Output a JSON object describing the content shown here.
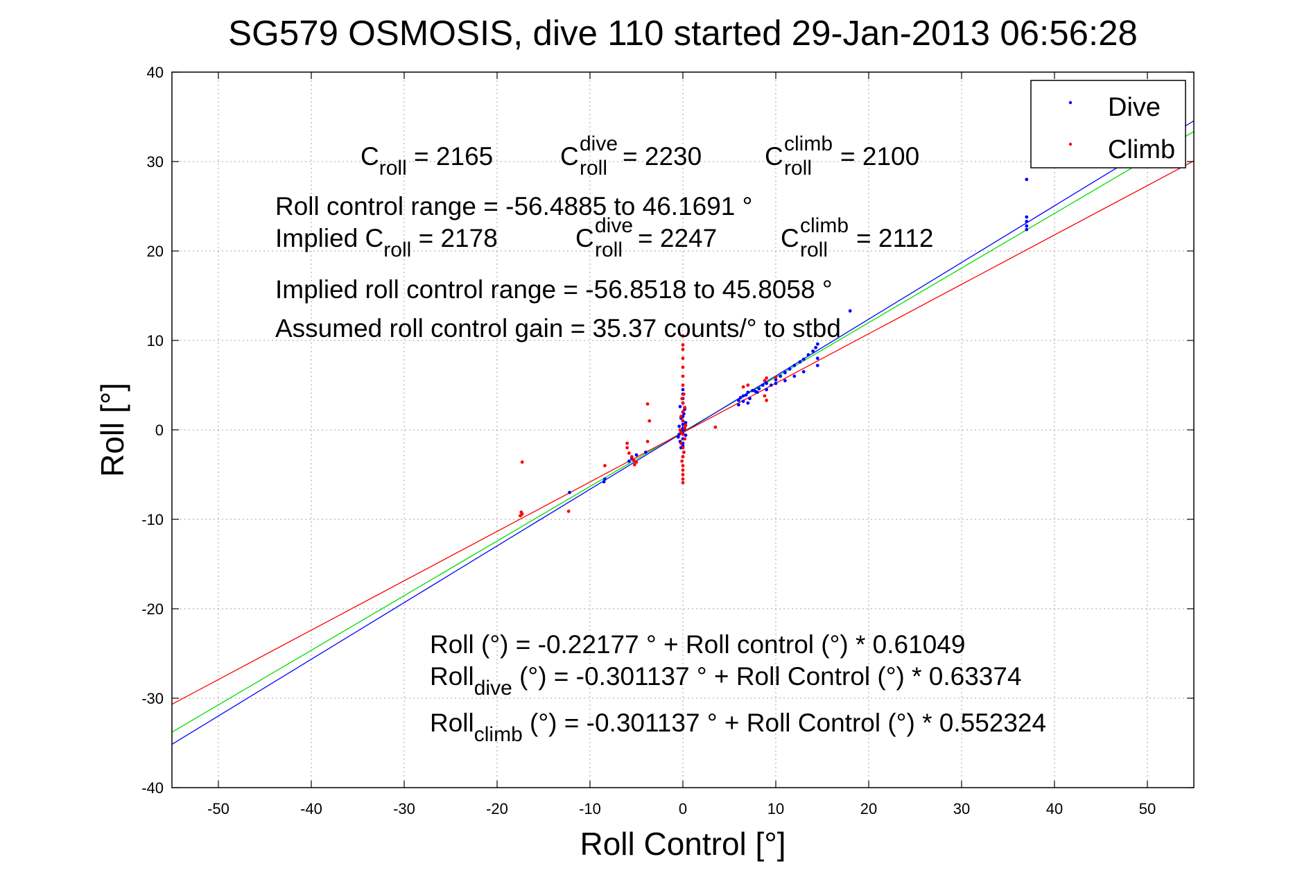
{
  "chart_data": {
    "type": "scatter",
    "title": "SG579 OSMOSIS, dive 110 started 29-Jan-2013 06:56:28",
    "xlabel": "Roll Control [°]",
    "ylabel": "Roll [°]",
    "xlim": [
      -55,
      55
    ],
    "ylim": [
      -40,
      40
    ],
    "xticks": [
      -50,
      -40,
      -30,
      -20,
      -10,
      0,
      10,
      20,
      30,
      40,
      50
    ],
    "yticks": [
      -40,
      -30,
      -20,
      -10,
      0,
      10,
      20,
      30,
      40
    ],
    "grid": true,
    "legend_position": "top-right",
    "colors": {
      "dive": "#0000ff",
      "climb": "#ff0000",
      "fit": "#00dd00",
      "axes": "#000000",
      "grid": "#a0a0a0"
    },
    "series": [
      {
        "name": "Dive",
        "color": "#0000ff",
        "points": [
          [
            0,
            4.5
          ],
          [
            0,
            4.0
          ],
          [
            0,
            3.5
          ],
          [
            0,
            3.0
          ],
          [
            -0.3,
            2.6
          ],
          [
            0.2,
            2.3
          ],
          [
            0,
            2.0
          ],
          [
            0.1,
            1.8
          ],
          [
            0,
            1.5
          ],
          [
            -0.2,
            1.3
          ],
          [
            0,
            1.0
          ],
          [
            0.3,
            0.8
          ],
          [
            0,
            0.6
          ],
          [
            -0.4,
            0.4
          ],
          [
            0,
            0.2
          ],
          [
            0.2,
            0.1
          ],
          [
            0,
            0
          ],
          [
            -0.2,
            -0.2
          ],
          [
            0,
            -0.4
          ],
          [
            0.3,
            -0.6
          ],
          [
            -0.5,
            -0.8
          ],
          [
            0,
            -1.0
          ],
          [
            -0.3,
            -1.3
          ],
          [
            0,
            -1.5
          ],
          [
            0,
            -1.8
          ],
          [
            -0.2,
            -2.0
          ],
          [
            0.1,
            -2.5
          ],
          [
            0,
            -3.0
          ],
          [
            -0.4,
            -0.5
          ],
          [
            6.0,
            3.3
          ],
          [
            6.2,
            3.6
          ],
          [
            6.5,
            3.8
          ],
          [
            6.8,
            3.9
          ],
          [
            7.0,
            4.2
          ],
          [
            7.2,
            3.5
          ],
          [
            7.5,
            4.4
          ],
          [
            7.0,
            3.0
          ],
          [
            6.5,
            3.2
          ],
          [
            6.0,
            2.8
          ],
          [
            7.8,
            4.3
          ],
          [
            8.2,
            4.6
          ],
          [
            8.6,
            5.0
          ],
          [
            9.0,
            5.2
          ],
          [
            9.5,
            5.0
          ],
          [
            10.0,
            5.6
          ],
          [
            10.5,
            6.0
          ],
          [
            11.0,
            6.4
          ],
          [
            11.5,
            6.8
          ],
          [
            12.0,
            7.2
          ],
          [
            12.6,
            7.6
          ],
          [
            13.0,
            7.9
          ],
          [
            13.5,
            8.4
          ],
          [
            14.0,
            8.8
          ],
          [
            14.3,
            9.2
          ],
          [
            14.5,
            9.6
          ],
          [
            14.5,
            8.0
          ],
          [
            14.5,
            7.2
          ],
          [
            13.0,
            6.5
          ],
          [
            12.0,
            6.0
          ],
          [
            11.0,
            5.5
          ],
          [
            10.0,
            5.2
          ],
          [
            9.0,
            4.5
          ],
          [
            8.0,
            4.2
          ],
          [
            18.0,
            13.3
          ],
          [
            37.0,
            28.0
          ],
          [
            37.0,
            23.8
          ],
          [
            37.0,
            23.3
          ],
          [
            37.0,
            22.8
          ],
          [
            37.0,
            22.4
          ],
          [
            -12.2,
            -7.0
          ],
          [
            -8.5,
            -5.8
          ],
          [
            -8.4,
            -5.5
          ],
          [
            -5.8,
            -3.5
          ],
          [
            -5.5,
            -3.2
          ],
          [
            -5.0,
            -2.8
          ],
          [
            -4.0,
            -2.5
          ]
        ]
      },
      {
        "name": "Climb",
        "color": "#ff0000",
        "points": [
          [
            0,
            10.5
          ],
          [
            0,
            9.5
          ],
          [
            0,
            9.0
          ],
          [
            0,
            8.0
          ],
          [
            0,
            7.0
          ],
          [
            0,
            6.0
          ],
          [
            0,
            5.0
          ],
          [
            0.1,
            4.0
          ],
          [
            -0.1,
            3.5
          ],
          [
            0,
            3.0
          ],
          [
            0.2,
            2.5
          ],
          [
            0,
            2.0
          ],
          [
            -0.2,
            1.5
          ],
          [
            0,
            1.0
          ],
          [
            0.3,
            0.5
          ],
          [
            -0.3,
            0
          ],
          [
            0,
            -0.5
          ],
          [
            0.2,
            -1.0
          ],
          [
            -0.2,
            -1.5
          ],
          [
            0,
            -2.0
          ],
          [
            0.1,
            -2.5
          ],
          [
            0,
            -3.0
          ],
          [
            -0.1,
            -3.5
          ],
          [
            0,
            -4.0
          ],
          [
            0,
            -4.5
          ],
          [
            0,
            -5.0
          ],
          [
            0,
            -5.5
          ],
          [
            0,
            -5.9
          ],
          [
            0.2,
            0.2
          ],
          [
            -0.2,
            -0.3
          ],
          [
            3.5,
            0.3
          ],
          [
            -3.8,
            2.9
          ],
          [
            -3.6,
            1.0
          ],
          [
            -3.8,
            -1.3
          ],
          [
            -6.0,
            -1.5
          ],
          [
            -6.0,
            -2.0
          ],
          [
            -5.8,
            -2.6
          ],
          [
            -5.5,
            -3.0
          ],
          [
            -5.3,
            -3.4
          ],
          [
            -5.0,
            -3.6
          ],
          [
            -5.2,
            -3.9
          ],
          [
            -8.4,
            -4.0
          ],
          [
            -17.3,
            -3.6
          ],
          [
            -17.4,
            -9.2
          ],
          [
            -17.3,
            -9.4
          ],
          [
            -17.5,
            -9.6
          ],
          [
            -12.3,
            -9.1
          ],
          [
            6.5,
            4.8
          ],
          [
            7.0,
            5.0
          ],
          [
            8.8,
            5.5
          ],
          [
            9.0,
            5.8
          ],
          [
            8.8,
            3.8
          ],
          [
            9.0,
            3.3
          ],
          [
            10.0,
            5.9
          ]
        ]
      }
    ],
    "fit_lines": [
      {
        "name": "Roll",
        "color": "#00dd00",
        "intercept": -0.22177,
        "slope": 0.61049
      },
      {
        "name": "Roll dive",
        "color": "#0000ff",
        "intercept": -0.301137,
        "slope": 0.63374
      },
      {
        "name": "Roll climb",
        "color": "#ff0000",
        "intercept": -0.301137,
        "slope": 0.552324
      }
    ]
  },
  "labels": {
    "title": "SG579 OSMOSIS, dive 110 started 29-Jan-2013 06:56:28",
    "xlabel": "Roll Control [°]",
    "ylabel": "Roll [°]",
    "legend_dive": "Dive",
    "legend_climb": "Climb"
  },
  "annotations": {
    "c_letter": "C",
    "roll_sub": "roll",
    "dive_sup": "dive",
    "climb_sup": "climb",
    "c_roll_value": " = 2165",
    "c_roll_dive_value": " = 2230",
    "c_roll_climb_value": " = 2100",
    "range_line": "Roll control range = -56.4885 to 46.1691 °",
    "implied_prefix": "Implied C",
    "implied_c_roll_value": " = 2178",
    "implied_c_roll_dive_value": " = 2247",
    "implied_c_roll_climb_value": " = 2112",
    "implied_range_line": "Implied roll control range = -56.8518 to 45.8058 °",
    "gain_line": "Assumed roll control gain = 35.37 counts/° to stbd",
    "fit_line": "Roll (°) = -0.22177 ° + Roll control (°) * 0.61049",
    "dive_roll_word": "Roll",
    "dive_sub": "dive",
    "dive_fit_rest": " (°) = -0.301137 ° + Roll Control (°) * 0.63374",
    "climb_roll_word": "Roll",
    "climb_sub": "climb",
    "climb_fit_rest": " (°) = -0.301137 ° + Roll Control (°) * 0.552324"
  }
}
